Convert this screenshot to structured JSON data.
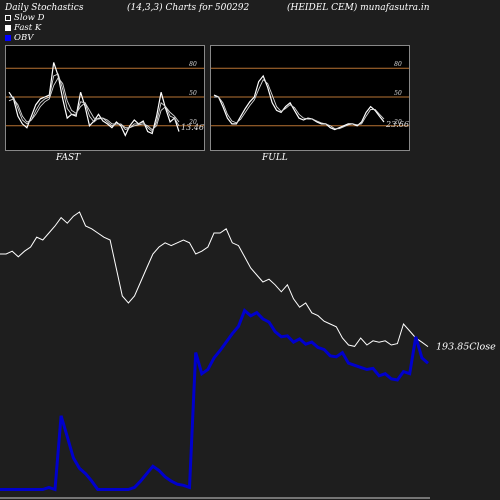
{
  "header": {
    "left": "Daily Stochastics",
    "center": "(14,3,3) Charts for 500292",
    "right": "(HEIDEL CEM) munafasutra.in"
  },
  "legend": [
    {
      "label": "Slow  D",
      "swatch": "outline"
    },
    {
      "label": "Fast K",
      "swatch": "filled"
    },
    {
      "label": "OBV",
      "swatch": "blue"
    }
  ],
  "colors": {
    "background": "#1e1e1e",
    "panel_bg": "#000000",
    "level_line": "#b87333",
    "obv": "#0000cc",
    "price": "#ffffff"
  },
  "chart_data": [
    {
      "type": "line",
      "title": "FAST",
      "ylim": [
        0,
        100
      ],
      "y_ticks": [
        "80",
        "50",
        "20"
      ],
      "levels": [
        80,
        50,
        20
      ],
      "last_value_label": "13.46",
      "series": [
        {
          "values": [
            55,
            48,
            30,
            22,
            18,
            30,
            42,
            48,
            50,
            52,
            86,
            72,
            48,
            28,
            32,
            30,
            55,
            40,
            20,
            25,
            32,
            25,
            22,
            18,
            24,
            20,
            10,
            20,
            26,
            22,
            25,
            14,
            12,
            30,
            55,
            38,
            24,
            28,
            14
          ]
        },
        {
          "values": [
            50,
            50,
            38,
            26,
            22,
            26,
            36,
            44,
            48,
            50,
            72,
            74,
            58,
            38,
            32,
            32,
            45,
            44,
            30,
            24,
            28,
            28,
            24,
            20,
            22,
            22,
            16,
            18,
            22,
            22,
            24,
            18,
            14,
            24,
            44,
            40,
            30,
            28,
            20
          ]
        },
        {
          "values": [
            46,
            48,
            42,
            30,
            24,
            26,
            32,
            40,
            45,
            48,
            62,
            70,
            64,
            46,
            36,
            33,
            40,
            44,
            36,
            28,
            27,
            28,
            26,
            22,
            22,
            22,
            18,
            18,
            20,
            21,
            22,
            20,
            16,
            20,
            36,
            40,
            34,
            30,
            24
          ]
        }
      ]
    },
    {
      "type": "line",
      "title": "FULL",
      "ylim": [
        0,
        100
      ],
      "y_ticks": [
        "80",
        "50",
        "20"
      ],
      "levels": [
        80,
        50,
        20
      ],
      "last_value_label": "23.66",
      "series": [
        {
          "values": [
            52,
            50,
            40,
            28,
            22,
            22,
            30,
            38,
            45,
            50,
            66,
            72,
            60,
            44,
            36,
            34,
            40,
            44,
            36,
            28,
            26,
            28,
            27,
            24,
            22,
            22,
            18,
            16,
            18,
            20,
            22,
            22,
            20,
            24,
            34,
            40,
            36,
            30,
            24
          ]
        },
        {
          "values": [
            50,
            50,
            44,
            32,
            25,
            23,
            27,
            34,
            41,
            47,
            58,
            68,
            64,
            52,
            40,
            35,
            38,
            42,
            39,
            32,
            28,
            27,
            27,
            25,
            23,
            22,
            20,
            17,
            17,
            19,
            21,
            22,
            21,
            22,
            30,
            37,
            37,
            32,
            27
          ]
        }
      ]
    },
    {
      "type": "line",
      "title": "",
      "price_last_label": "193.85",
      "price_label_suffix": "Close",
      "series": [
        {
          "name": "Close",
          "values": [
            260,
            260,
            262,
            258,
            262,
            265,
            272,
            270,
            275,
            280,
            286,
            282,
            287,
            290,
            280,
            278,
            275,
            272,
            270,
            250,
            230,
            225,
            230,
            240,
            250,
            260,
            265,
            268,
            266,
            268,
            270,
            268,
            260,
            262,
            265,
            275,
            275,
            278,
            268,
            266,
            258,
            250,
            245,
            240,
            242,
            238,
            233,
            238,
            228,
            222,
            225,
            218,
            216,
            212,
            210,
            208,
            200,
            195,
            194,
            200,
            195,
            198,
            197,
            198,
            195,
            196,
            210,
            205,
            200,
            197,
            193.85
          ]
        },
        {
          "name": "OBV",
          "values": [
            10,
            10,
            10,
            10,
            10,
            10,
            10,
            10,
            12,
            10,
            80,
            60,
            40,
            30,
            25,
            18,
            10,
            10,
            10,
            10,
            10,
            10,
            12,
            18,
            25,
            32,
            28,
            22,
            18,
            15,
            14,
            12,
            140,
            120,
            124,
            135,
            142,
            150,
            158,
            165,
            180,
            175,
            178,
            172,
            169,
            160,
            155,
            156,
            150,
            153,
            148,
            150,
            145,
            143,
            137,
            136,
            140,
            130,
            128,
            126,
            124,
            125,
            118,
            120,
            115,
            114,
            122,
            120,
            155,
            135,
            130
          ]
        }
      ]
    }
  ]
}
